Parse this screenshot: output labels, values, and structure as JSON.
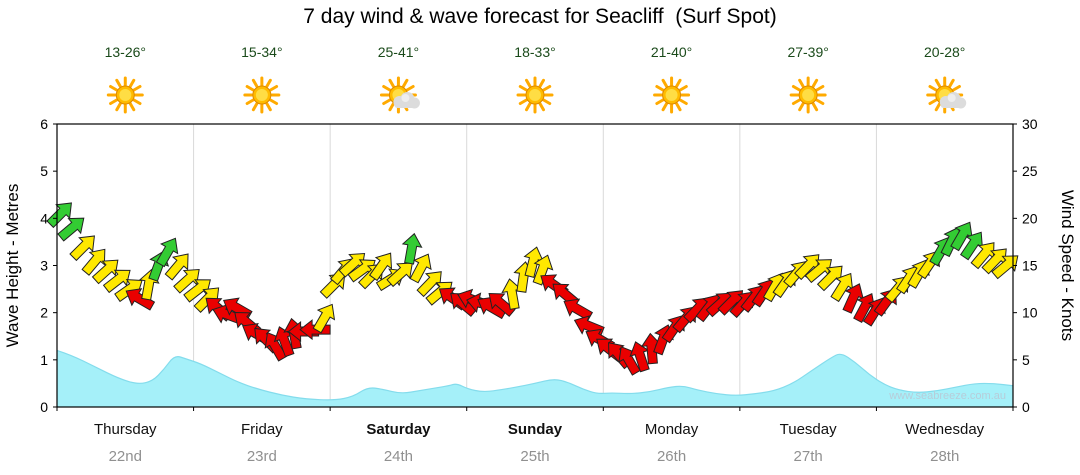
{
  "title": "7 day wind & wave forecast for Seacliff  (Surf Spot)",
  "watermark": "www.seabreeze.com.au",
  "colors": {
    "wave_fill": "#a5f0f9",
    "wave_edge": "#84dcec",
    "arrow_green": "#33cc33",
    "arrow_yellow": "#ffe800",
    "arrow_red": "#ea0000",
    "arrow_outline": "#222222",
    "grid": "#d9d9d9",
    "axis": "#000000",
    "day_name": "#111111",
    "day_date": "#909090",
    "temp_text": "#1a4a1a",
    "watermark_color": "#b7ccd9",
    "sun_ray": "#ffaa00",
    "sun_core": "#ffbb00",
    "sun_inner": "#ffdd44",
    "cloud": "#dcdcdc"
  },
  "days": [
    {
      "name": "Thursday",
      "date": "22nd",
      "temp": "13-26°",
      "icon": "sunny",
      "bold": false
    },
    {
      "name": "Friday",
      "date": "23rd",
      "temp": "15-34°",
      "icon": "sunny",
      "bold": false
    },
    {
      "name": "Saturday",
      "date": "24th",
      "temp": "25-41°",
      "icon": "partly-cloudy",
      "bold": true
    },
    {
      "name": "Sunday",
      "date": "25th",
      "temp": "18-33°",
      "icon": "sunny",
      "bold": true
    },
    {
      "name": "Monday",
      "date": "26th",
      "temp": "21-40°",
      "icon": "sunny",
      "bold": false
    },
    {
      "name": "Tuesday",
      "date": "27th",
      "temp": "27-39°",
      "icon": "sunny",
      "bold": false
    },
    {
      "name": "Wednesday",
      "date": "28th",
      "temp": "20-28°",
      "icon": "partly-cloudy",
      "bold": false
    }
  ],
  "chart_data": {
    "type": "area",
    "title": "7 day wind & wave forecast for Seacliff  (Surf Spot)",
    "x_axis": {
      "categories": [
        "Thursday 22nd",
        "Friday 23rd",
        "Saturday 24th",
        "Sunday 25th",
        "Monday 26th",
        "Tuesday 27th",
        "Wednesday 28th"
      ],
      "note": "t = fraction of the 7-day span"
    },
    "left_axis": {
      "label": "Wave Height - Metres",
      "range": [
        0,
        6
      ],
      "ticks": [
        0,
        1,
        2,
        3,
        4,
        5,
        6
      ]
    },
    "right_axis": {
      "label": "Wind Speed - Knots",
      "range": [
        0,
        30
      ],
      "ticks": [
        0,
        5,
        10,
        15,
        20,
        25,
        30
      ]
    },
    "wave_series": {
      "name": "Wave Height (m)",
      "point_format": [
        "t",
        "metres"
      ],
      "points": [
        [
          0.0,
          1.2
        ],
        [
          0.015,
          1.1
        ],
        [
          0.04,
          0.85
        ],
        [
          0.065,
          0.6
        ],
        [
          0.085,
          0.48
        ],
        [
          0.1,
          0.55
        ],
        [
          0.112,
          0.8
        ],
        [
          0.123,
          1.1
        ],
        [
          0.135,
          1.02
        ],
        [
          0.15,
          0.92
        ],
        [
          0.17,
          0.72
        ],
        [
          0.19,
          0.52
        ],
        [
          0.21,
          0.38
        ],
        [
          0.235,
          0.25
        ],
        [
          0.26,
          0.17
        ],
        [
          0.29,
          0.14
        ],
        [
          0.31,
          0.22
        ],
        [
          0.325,
          0.42
        ],
        [
          0.34,
          0.38
        ],
        [
          0.36,
          0.28
        ],
        [
          0.38,
          0.35
        ],
        [
          0.395,
          0.4
        ],
        [
          0.41,
          0.45
        ],
        [
          0.418,
          0.5
        ],
        [
          0.43,
          0.38
        ],
        [
          0.445,
          0.32
        ],
        [
          0.46,
          0.35
        ],
        [
          0.48,
          0.42
        ],
        [
          0.5,
          0.5
        ],
        [
          0.52,
          0.6
        ],
        [
          0.535,
          0.52
        ],
        [
          0.55,
          0.38
        ],
        [
          0.565,
          0.28
        ],
        [
          0.58,
          0.3
        ],
        [
          0.6,
          0.28
        ],
        [
          0.62,
          0.32
        ],
        [
          0.64,
          0.42
        ],
        [
          0.655,
          0.45
        ],
        [
          0.67,
          0.36
        ],
        [
          0.69,
          0.28
        ],
        [
          0.71,
          0.24
        ],
        [
          0.73,
          0.28
        ],
        [
          0.75,
          0.34
        ],
        [
          0.77,
          0.5
        ],
        [
          0.79,
          0.78
        ],
        [
          0.81,
          1.05
        ],
        [
          0.82,
          1.15
        ],
        [
          0.835,
          0.95
        ],
        [
          0.85,
          0.68
        ],
        [
          0.865,
          0.48
        ],
        [
          0.88,
          0.36
        ],
        [
          0.9,
          0.3
        ],
        [
          0.92,
          0.34
        ],
        [
          0.94,
          0.42
        ],
        [
          0.96,
          0.5
        ],
        [
          0.98,
          0.5
        ],
        [
          1.0,
          0.45
        ]
      ]
    },
    "wind_series": {
      "name": "Wind",
      "arrow_format": [
        "t",
        "knots",
        "direction_deg_ccw_from_east",
        "color g=offshore y=cross r=onshore"
      ],
      "arrows": [
        [
          0.004,
          20.5,
          45,
          "g"
        ],
        [
          0.016,
          19.0,
          40,
          "g"
        ],
        [
          0.028,
          17.0,
          45,
          "y"
        ],
        [
          0.04,
          15.5,
          50,
          "y"
        ],
        [
          0.052,
          14.5,
          42,
          "y"
        ],
        [
          0.064,
          13.5,
          38,
          "y"
        ],
        [
          0.076,
          12.5,
          35,
          "y"
        ],
        [
          0.086,
          11.5,
          150,
          "r"
        ],
        [
          0.096,
          13.0,
          80,
          "y"
        ],
        [
          0.106,
          15.0,
          70,
          "g"
        ],
        [
          0.116,
          16.5,
          60,
          "g"
        ],
        [
          0.127,
          15.0,
          50,
          "y"
        ],
        [
          0.137,
          13.5,
          42,
          "y"
        ],
        [
          0.148,
          12.5,
          38,
          "y"
        ],
        [
          0.158,
          11.5,
          45,
          "y"
        ],
        [
          0.168,
          10.5,
          140,
          "r"
        ],
        [
          0.178,
          9.8,
          160,
          "r"
        ],
        [
          0.188,
          10.5,
          150,
          "r"
        ],
        [
          0.198,
          9.0,
          140,
          "r"
        ],
        [
          0.208,
          7.8,
          150,
          "r"
        ],
        [
          0.218,
          7.2,
          135,
          "r"
        ],
        [
          0.228,
          6.5,
          120,
          "r"
        ],
        [
          0.238,
          7.0,
          110,
          "r"
        ],
        [
          0.248,
          7.8,
          100,
          "r"
        ],
        [
          0.258,
          8.0,
          180,
          "r"
        ],
        [
          0.27,
          8.2,
          180,
          "r"
        ],
        [
          0.28,
          9.5,
          60,
          "y"
        ],
        [
          0.29,
          13.0,
          45,
          "y"
        ],
        [
          0.3,
          14.5,
          50,
          "y"
        ],
        [
          0.31,
          15.2,
          42,
          "y"
        ],
        [
          0.32,
          14.6,
          36,
          "y"
        ],
        [
          0.33,
          14.0,
          45,
          "y"
        ],
        [
          0.34,
          15.0,
          55,
          "y"
        ],
        [
          0.35,
          13.6,
          32,
          "y"
        ],
        [
          0.36,
          14.2,
          42,
          "y"
        ],
        [
          0.371,
          16.8,
          80,
          "g"
        ],
        [
          0.381,
          14.8,
          62,
          "y"
        ],
        [
          0.391,
          13.2,
          46,
          "y"
        ],
        [
          0.401,
          12.2,
          40,
          "y"
        ],
        [
          0.413,
          11.6,
          145,
          "r"
        ],
        [
          0.424,
          11.0,
          140,
          "r"
        ],
        [
          0.434,
          11.4,
          160,
          "r"
        ],
        [
          0.444,
          11.0,
          168,
          "r"
        ],
        [
          0.454,
          10.6,
          150,
          "r"
        ],
        [
          0.464,
          11.0,
          140,
          "r"
        ],
        [
          0.476,
          12.0,
          100,
          "y"
        ],
        [
          0.488,
          13.8,
          82,
          "y"
        ],
        [
          0.498,
          15.4,
          76,
          "y"
        ],
        [
          0.508,
          14.6,
          70,
          "y"
        ],
        [
          0.519,
          13.0,
          145,
          "r"
        ],
        [
          0.531,
          12.0,
          140,
          "r"
        ],
        [
          0.544,
          10.4,
          150,
          "r"
        ],
        [
          0.556,
          8.6,
          158,
          "r"
        ],
        [
          0.567,
          7.2,
          150,
          "r"
        ],
        [
          0.577,
          6.2,
          142,
          "r"
        ],
        [
          0.587,
          5.6,
          130,
          "r"
        ],
        [
          0.598,
          5.0,
          120,
          "r"
        ],
        [
          0.61,
          5.4,
          108,
          "r"
        ],
        [
          0.622,
          6.2,
          95,
          "r"
        ],
        [
          0.634,
          7.2,
          70,
          "r"
        ],
        [
          0.646,
          8.4,
          55,
          "r"
        ],
        [
          0.658,
          9.4,
          50,
          "r"
        ],
        [
          0.67,
          10.4,
          46,
          "r"
        ],
        [
          0.682,
          10.6,
          52,
          "r"
        ],
        [
          0.694,
          11.0,
          42,
          "r"
        ],
        [
          0.706,
          11.2,
          45,
          "r"
        ],
        [
          0.718,
          11.0,
          48,
          "r"
        ],
        [
          0.729,
          11.6,
          52,
          "r"
        ],
        [
          0.74,
          12.2,
          56,
          "r"
        ],
        [
          0.751,
          12.8,
          60,
          "y"
        ],
        [
          0.762,
          13.2,
          55,
          "y"
        ],
        [
          0.774,
          14.2,
          50,
          "y"
        ],
        [
          0.786,
          15.0,
          46,
          "y"
        ],
        [
          0.798,
          14.6,
          40,
          "y"
        ],
        [
          0.81,
          13.8,
          45,
          "y"
        ],
        [
          0.822,
          12.8,
          58,
          "y"
        ],
        [
          0.833,
          11.6,
          66,
          "r"
        ],
        [
          0.845,
          10.6,
          62,
          "r"
        ],
        [
          0.856,
          10.2,
          58,
          "r"
        ],
        [
          0.868,
          11.2,
          54,
          "r"
        ],
        [
          0.88,
          12.6,
          50,
          "y"
        ],
        [
          0.891,
          13.6,
          56,
          "y"
        ],
        [
          0.902,
          14.2,
          60,
          "y"
        ],
        [
          0.913,
          15.2,
          56,
          "y"
        ],
        [
          0.925,
          16.6,
          60,
          "g"
        ],
        [
          0.936,
          17.6,
          64,
          "g"
        ],
        [
          0.947,
          18.2,
          60,
          "g"
        ],
        [
          0.958,
          17.2,
          56,
          "g"
        ],
        [
          0.97,
          16.2,
          50,
          "y"
        ],
        [
          0.982,
          15.6,
          46,
          "y"
        ],
        [
          0.993,
          15.0,
          40,
          "y"
        ]
      ]
    }
  }
}
